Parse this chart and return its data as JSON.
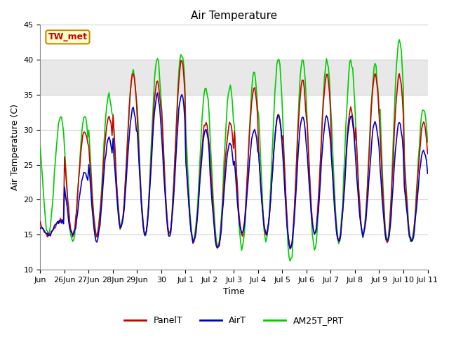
{
  "title": "Air Temperature",
  "ylabel": "Air Temperature (C)",
  "xlabel": "Time",
  "annotation_text": "TW_met",
  "ylim": [
    10,
    45
  ],
  "xlim": [
    0,
    16
  ],
  "background_color": "#ffffff",
  "plot_bg_color": "#ffffff",
  "shaded_region": [
    35,
    40
  ],
  "shaded_color": "#e8e8e8",
  "grid_color": "#d0d0d0",
  "series": [
    "PanelT",
    "AirT",
    "AM25T_PRT"
  ],
  "colors": [
    "#cc0000",
    "#0000cc",
    "#00cc00"
  ],
  "line_width": 1.2,
  "tick_labels": [
    "Jun",
    "26Jun",
    "27Jun",
    "28Jun",
    "29Jun",
    "30",
    "Jul 1",
    "Jul 2",
    "Jul 3",
    "Jul 4",
    "Jul 5",
    "Jul 6",
    "Jul 7",
    "Jul 8",
    "Jul 9",
    "Jul 10",
    "Jul 11"
  ],
  "yticks": [
    10,
    15,
    20,
    25,
    30,
    35,
    40,
    45
  ],
  "legend_loc": "lower center",
  "title_fontsize": 11,
  "axis_fontsize": 9,
  "tick_fontsize": 8
}
